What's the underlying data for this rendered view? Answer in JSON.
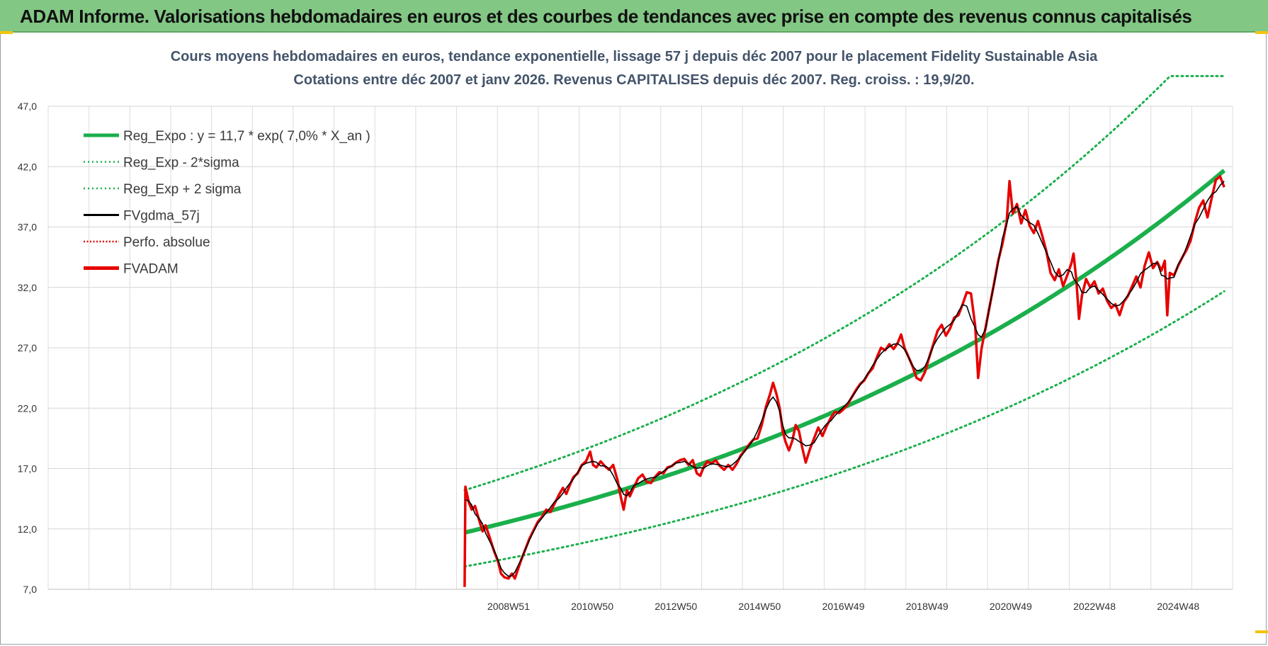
{
  "banner": {
    "title": "ADAM Informe. Valorisations hebdomadaires en euros et des courbes de tendances avec prise en compte des revenus connus capitalisés",
    "color": "#82c784"
  },
  "chart_data": {
    "type": "line",
    "title": "Cours moyens hebdomadaires en euros, tendance exponentielle, lissage 57 j depuis déc 2007 pour le placement Fidelity Sustainable Asia",
    "subtitle": "Cotations entre déc 2007 et janv 2026. Revenus CAPITALISES depuis déc 2007. Reg. croiss. : 19,9/20.",
    "y_ticks": [
      "7,0",
      "12,0",
      "17,0",
      "22,0",
      "27,0",
      "32,0",
      "37,0",
      "42,0",
      "47,0"
    ],
    "ylim": [
      7,
      47
    ],
    "x_labels": [
      "2008W51",
      "2010W50",
      "2012W50",
      "2014W50",
      "2016W49",
      "2018W49",
      "2020W49",
      "2022W48",
      "2024W48"
    ],
    "x_label_years": [
      2009.0,
      2011.0,
      2013.0,
      2015.0,
      2017.0,
      2019.0,
      2021.0,
      2023.0,
      2025.0
    ],
    "xlim": [
      1998.0,
      2026.3
    ],
    "x_start": 2007.95,
    "x_end": 2026.1,
    "grid": true,
    "legend_position": "top-left",
    "legend": [
      {
        "label": "Reg_Expo : y = 11,7 * exp( 7,0% *  X_an )",
        "color": "#1aaf4b",
        "style": "solid-thick"
      },
      {
        "label": "Reg_Exp - 2*sigma",
        "color": "#1aaf4b",
        "style": "dotted"
      },
      {
        "label": "Reg_Exp + 2 sigma",
        "color": "#1aaf4b",
        "style": "dotted"
      },
      {
        "label": "FVgdma_57j",
        "color": "#000000",
        "style": "solid"
      },
      {
        "label": "Perfo. absolue",
        "color": "#e00000",
        "style": "dotted"
      },
      {
        "label": "FVADAM",
        "color": "#e60000",
        "style": "solid-thick"
      }
    ],
    "regression": {
      "a": 11.7,
      "rate": 0.07,
      "sigma_factor_upper": 1.3,
      "sigma_factor_lower": 0.76,
      "upper_cap": 49.5
    },
    "fvadam": [
      [
        2007.95,
        7.2
      ],
      [
        2007.97,
        15.5
      ],
      [
        2008.05,
        14.2
      ],
      [
        2008.12,
        13.6
      ],
      [
        2008.2,
        13.9
      ],
      [
        2008.3,
        12.7
      ],
      [
        2008.38,
        11.8
      ],
      [
        2008.45,
        12.3
      ],
      [
        2008.55,
        11.3
      ],
      [
        2008.65,
        10.2
      ],
      [
        2008.75,
        9.3
      ],
      [
        2008.82,
        8.3
      ],
      [
        2008.9,
        8.0
      ],
      [
        2009.0,
        7.9
      ],
      [
        2009.08,
        8.3
      ],
      [
        2009.15,
        7.9
      ],
      [
        2009.22,
        8.6
      ],
      [
        2009.3,
        9.4
      ],
      [
        2009.4,
        10.3
      ],
      [
        2009.5,
        11.2
      ],
      [
        2009.6,
        11.9
      ],
      [
        2009.7,
        12.6
      ],
      [
        2009.8,
        13.0
      ],
      [
        2009.9,
        13.6
      ],
      [
        2010.0,
        13.4
      ],
      [
        2010.1,
        14.1
      ],
      [
        2010.2,
        14.8
      ],
      [
        2010.3,
        15.4
      ],
      [
        2010.38,
        14.9
      ],
      [
        2010.46,
        15.6
      ],
      [
        2010.55,
        16.3
      ],
      [
        2010.65,
        16.6
      ],
      [
        2010.75,
        17.3
      ],
      [
        2010.85,
        17.6
      ],
      [
        2010.95,
        18.4
      ],
      [
        2011.02,
        17.3
      ],
      [
        2011.1,
        17.1
      ],
      [
        2011.2,
        17.6
      ],
      [
        2011.3,
        17.2
      ],
      [
        2011.4,
        16.9
      ],
      [
        2011.5,
        17.3
      ],
      [
        2011.6,
        16.1
      ],
      [
        2011.68,
        14.7
      ],
      [
        2011.75,
        13.6
      ],
      [
        2011.83,
        15.2
      ],
      [
        2011.9,
        14.7
      ],
      [
        2012.0,
        15.5
      ],
      [
        2012.1,
        16.2
      ],
      [
        2012.2,
        16.5
      ],
      [
        2012.3,
        15.9
      ],
      [
        2012.4,
        15.8
      ],
      [
        2012.5,
        16.3
      ],
      [
        2012.6,
        16.7
      ],
      [
        2012.7,
        16.6
      ],
      [
        2012.8,
        17.1
      ],
      [
        2012.9,
        17.2
      ],
      [
        2013.0,
        17.5
      ],
      [
        2013.1,
        17.7
      ],
      [
        2013.2,
        17.8
      ],
      [
        2013.3,
        17.3
      ],
      [
        2013.4,
        17.7
      ],
      [
        2013.5,
        16.6
      ],
      [
        2013.58,
        16.4
      ],
      [
        2013.66,
        17.1
      ],
      [
        2013.75,
        17.6
      ],
      [
        2013.85,
        17.4
      ],
      [
        2013.95,
        17.7
      ],
      [
        2014.05,
        17.2
      ],
      [
        2014.15,
        16.9
      ],
      [
        2014.25,
        17.3
      ],
      [
        2014.35,
        16.9
      ],
      [
        2014.45,
        17.4
      ],
      [
        2014.55,
        18.1
      ],
      [
        2014.65,
        18.5
      ],
      [
        2014.75,
        19.0
      ],
      [
        2014.85,
        19.4
      ],
      [
        2014.95,
        19.5
      ],
      [
        2015.05,
        20.6
      ],
      [
        2015.15,
        22.1
      ],
      [
        2015.25,
        23.2
      ],
      [
        2015.32,
        24.1
      ],
      [
        2015.4,
        23.2
      ],
      [
        2015.48,
        22.0
      ],
      [
        2015.55,
        20.1
      ],
      [
        2015.62,
        19.2
      ],
      [
        2015.7,
        18.5
      ],
      [
        2015.78,
        19.3
      ],
      [
        2015.86,
        20.6
      ],
      [
        2015.94,
        20.1
      ],
      [
        2016.02,
        18.7
      ],
      [
        2016.1,
        17.5
      ],
      [
        2016.2,
        18.6
      ],
      [
        2016.3,
        19.5
      ],
      [
        2016.4,
        20.4
      ],
      [
        2016.5,
        19.7
      ],
      [
        2016.6,
        20.5
      ],
      [
        2016.7,
        21.2
      ],
      [
        2016.8,
        21.7
      ],
      [
        2016.9,
        21.6
      ],
      [
        2017.0,
        21.9
      ],
      [
        2017.1,
        22.3
      ],
      [
        2017.2,
        22.9
      ],
      [
        2017.3,
        23.5
      ],
      [
        2017.4,
        24.0
      ],
      [
        2017.5,
        24.3
      ],
      [
        2017.6,
        24.9
      ],
      [
        2017.7,
        25.3
      ],
      [
        2017.8,
        26.2
      ],
      [
        2017.9,
        27.0
      ],
      [
        2018.0,
        26.8
      ],
      [
        2018.1,
        27.3
      ],
      [
        2018.2,
        26.9
      ],
      [
        2018.3,
        27.4
      ],
      [
        2018.38,
        28.1
      ],
      [
        2018.46,
        27.0
      ],
      [
        2018.55,
        26.3
      ],
      [
        2018.65,
        25.5
      ],
      [
        2018.75,
        24.5
      ],
      [
        2018.85,
        24.3
      ],
      [
        2018.95,
        25.0
      ],
      [
        2019.05,
        26.2
      ],
      [
        2019.15,
        27.3
      ],
      [
        2019.25,
        28.4
      ],
      [
        2019.35,
        28.9
      ],
      [
        2019.45,
        28.0
      ],
      [
        2019.55,
        28.6
      ],
      [
        2019.65,
        29.5
      ],
      [
        2019.75,
        29.7
      ],
      [
        2019.85,
        30.6
      ],
      [
        2019.95,
        31.6
      ],
      [
        2020.05,
        31.5
      ],
      [
        2020.15,
        28.8
      ],
      [
        2020.22,
        24.5
      ],
      [
        2020.3,
        26.9
      ],
      [
        2020.4,
        28.7
      ],
      [
        2020.5,
        30.5
      ],
      [
        2020.6,
        32.3
      ],
      [
        2020.7,
        34.2
      ],
      [
        2020.8,
        35.6
      ],
      [
        2020.9,
        37.4
      ],
      [
        2020.97,
        40.8
      ],
      [
        2021.05,
        38.1
      ],
      [
        2021.15,
        38.9
      ],
      [
        2021.25,
        37.3
      ],
      [
        2021.35,
        38.4
      ],
      [
        2021.45,
        37.1
      ],
      [
        2021.55,
        36.5
      ],
      [
        2021.65,
        37.5
      ],
      [
        2021.75,
        36.3
      ],
      [
        2021.85,
        35.0
      ],
      [
        2021.95,
        33.2
      ],
      [
        2022.05,
        32.6
      ],
      [
        2022.15,
        33.5
      ],
      [
        2022.25,
        32.1
      ],
      [
        2022.35,
        33.0
      ],
      [
        2022.45,
        34.0
      ],
      [
        2022.5,
        34.8
      ],
      [
        2022.57,
        32.5
      ],
      [
        2022.63,
        29.4
      ],
      [
        2022.7,
        31.3
      ],
      [
        2022.8,
        32.7
      ],
      [
        2022.9,
        32.0
      ],
      [
        2023.0,
        32.5
      ],
      [
        2023.1,
        31.5
      ],
      [
        2023.2,
        31.9
      ],
      [
        2023.3,
        30.9
      ],
      [
        2023.4,
        30.3
      ],
      [
        2023.5,
        30.6
      ],
      [
        2023.6,
        29.7
      ],
      [
        2023.7,
        30.8
      ],
      [
        2023.8,
        31.3
      ],
      [
        2023.9,
        32.1
      ],
      [
        2024.0,
        32.9
      ],
      [
        2024.1,
        32.0
      ],
      [
        2024.2,
        33.8
      ],
      [
        2024.3,
        34.9
      ],
      [
        2024.4,
        33.6
      ],
      [
        2024.5,
        34.1
      ],
      [
        2024.6,
        33.4
      ],
      [
        2024.68,
        34.2
      ],
      [
        2024.74,
        29.7
      ],
      [
        2024.8,
        33.2
      ],
      [
        2024.9,
        33.0
      ],
      [
        2025.0,
        33.8
      ],
      [
        2025.1,
        34.5
      ],
      [
        2025.2,
        35.1
      ],
      [
        2025.3,
        35.9
      ],
      [
        2025.4,
        37.4
      ],
      [
        2025.5,
        38.6
      ],
      [
        2025.6,
        39.2
      ],
      [
        2025.7,
        37.8
      ],
      [
        2025.8,
        39.4
      ],
      [
        2025.9,
        40.9
      ],
      [
        2026.0,
        41.2
      ],
      [
        2026.1,
        40.3
      ]
    ]
  }
}
